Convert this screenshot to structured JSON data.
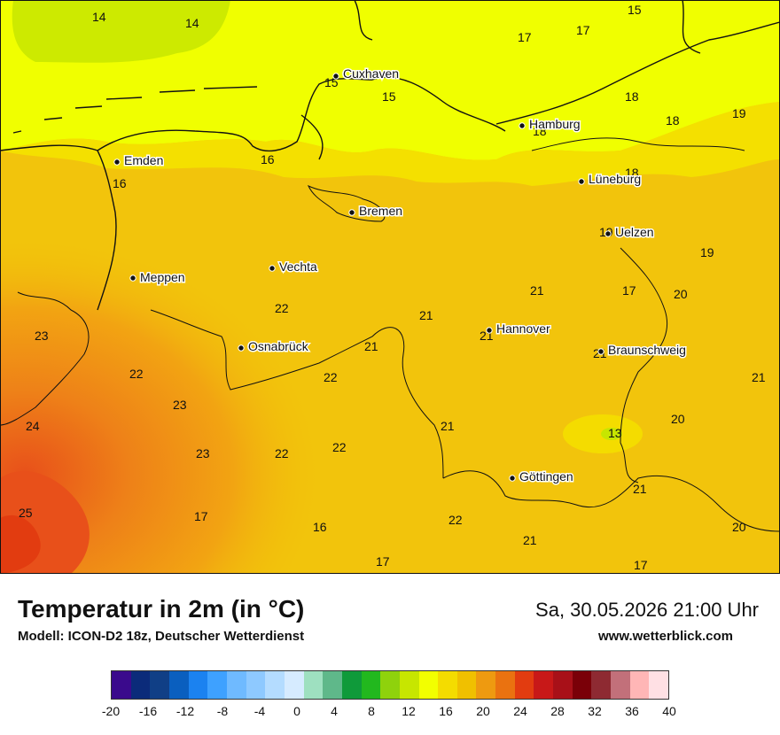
{
  "map": {
    "cities": [
      {
        "name": "Cuxhaven"
      },
      {
        "name": "Hamburg"
      },
      {
        "name": "Emden"
      },
      {
        "name": "Lüneburg"
      },
      {
        "name": "Bremen"
      },
      {
        "name": "Uelzen"
      },
      {
        "name": "Meppen"
      },
      {
        "name": "Vechta"
      },
      {
        "name": "Hannover"
      },
      {
        "name": "Osnabrück"
      },
      {
        "name": "Braunschweig"
      },
      {
        "name": "Göttingen"
      }
    ],
    "temperatures": [
      "14",
      "14",
      "15",
      "17",
      "17",
      "15",
      "15",
      "18",
      "18",
      "19",
      "18",
      "16",
      "16",
      "18",
      "19",
      "19",
      "21",
      "17",
      "20",
      "21",
      "22",
      "21",
      "21",
      "21",
      "23",
      "22",
      "22",
      "21",
      "23",
      "24",
      "23",
      "22",
      "22",
      "21",
      "13",
      "20",
      "21",
      "25",
      "17",
      "16",
      "22",
      "17",
      "21",
      "17",
      "20"
    ]
  },
  "legend": {
    "title": "Temperatur in 2m (in °C)",
    "model": "Modell: ICON-D2 18z, Deutscher Wetterdienst",
    "datetime": "Sa, 30.05.2026 21:00 Uhr",
    "website": "www.wetterblick.com",
    "colors": [
      "#3a0a8c",
      "#0b2b7a",
      "#103f86",
      "#0a5fbf",
      "#1b82f0",
      "#3ea1ff",
      "#6fbaff",
      "#8ec9ff",
      "#b4dcff",
      "#d6ebff",
      "#9ee0c0",
      "#5fb88a",
      "#0f9a3a",
      "#22b81e",
      "#8fd20c",
      "#c7e600",
      "#f2ff00",
      "#f4dc00",
      "#f0c000",
      "#ee9a10",
      "#ea7210",
      "#e23c10",
      "#c81818",
      "#a81018",
      "#7a0008",
      "#8e2a32",
      "#c2707a",
      "#ffb6b6",
      "#ffe0e4"
    ],
    "ticks": [
      "-20",
      "-16",
      "-12",
      "-8",
      "-4",
      "0",
      "4",
      "8",
      "12",
      "16",
      "20",
      "24",
      "28",
      "32",
      "36",
      "40"
    ]
  }
}
